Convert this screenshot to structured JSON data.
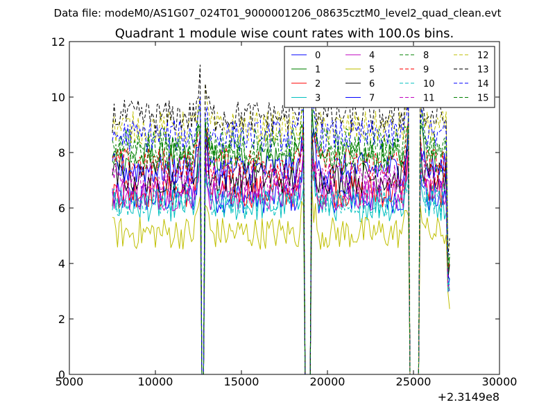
{
  "chart_data": {
    "type": "line",
    "suptitle": "Data file: modeM0/AS1G07_024T01_9000001206_08635cztM0_level2_quad_clean.evt",
    "title": "Quadrant 1 module wise count rates with 100.0s bins.",
    "xlabel": "",
    "ylabel": "",
    "x_offset_label": "+2.3149e8",
    "xlim": [
      5000,
      30000
    ],
    "ylim": [
      0,
      12
    ],
    "x_ticks": [
      5000,
      10000,
      15000,
      20000,
      25000,
      30000
    ],
    "y_ticks": [
      0,
      2,
      4,
      6,
      8,
      10,
      12
    ],
    "grid": false,
    "legend_position": "top-right",
    "legend_columns": 4,
    "time_series": {
      "x_start": 7500,
      "x_end": 27100,
      "bin_size": 100,
      "gaps": [
        [
          12600,
          12850
        ],
        [
          18650,
          19100
        ],
        [
          24750,
          25350
        ]
      ]
    },
    "series": [
      {
        "name": "0",
        "color": "#0000ff",
        "dash": "solid",
        "level": 6.4
      },
      {
        "name": "1",
        "color": "#008000",
        "dash": "solid",
        "level": 7.8
      },
      {
        "name": "2",
        "color": "#ff0000",
        "dash": "solid",
        "level": 6.6
      },
      {
        "name": "3",
        "color": "#00bfbf",
        "dash": "solid",
        "level": 6.1
      },
      {
        "name": "4",
        "color": "#bf00bf",
        "dash": "solid",
        "level": 6.5
      },
      {
        "name": "5",
        "color": "#bfbf00",
        "dash": "solid",
        "level": 5.1
      },
      {
        "name": "6",
        "color": "#000000",
        "dash": "solid",
        "level": 7.1
      },
      {
        "name": "7",
        "color": "#0000ff",
        "dash": "solid",
        "level": 7.4
      },
      {
        "name": "8",
        "color": "#008000",
        "dash": "dashed",
        "level": 8.3
      },
      {
        "name": "9",
        "color": "#ff0000",
        "dash": "dashed",
        "level": 7.6
      },
      {
        "name": "10",
        "color": "#00bfbf",
        "dash": "dashed",
        "level": 6.3
      },
      {
        "name": "11",
        "color": "#bf00bf",
        "dash": "dashed",
        "level": 7.0
      },
      {
        "name": "12",
        "color": "#bfbf00",
        "dash": "dashed",
        "level": 8.9
      },
      {
        "name": "13",
        "color": "#000000",
        "dash": "dashed",
        "level": 9.3
      },
      {
        "name": "14",
        "color": "#0000ff",
        "dash": "dashed",
        "level": 8.6
      },
      {
        "name": "15",
        "color": "#008000",
        "dash": "dashed",
        "level": 8.0
      }
    ]
  }
}
